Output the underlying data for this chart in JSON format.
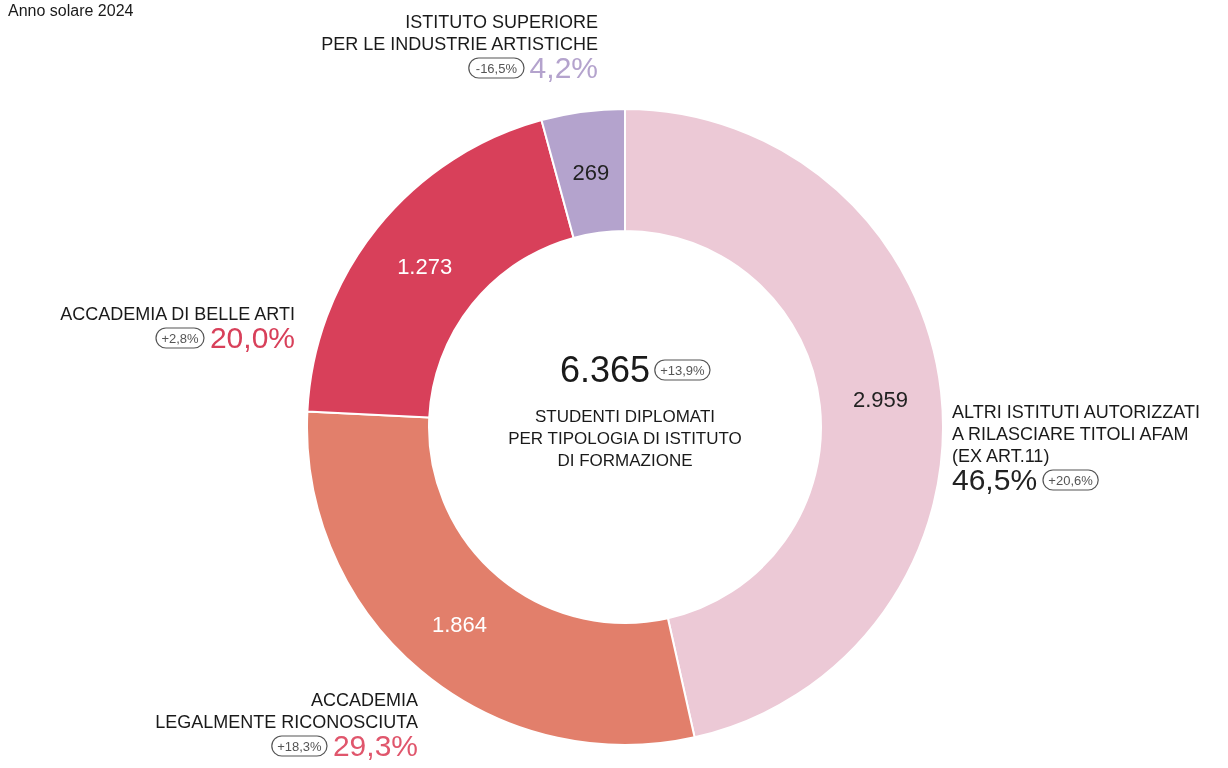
{
  "chart_data": {
    "type": "donut",
    "title": "Anno solare 2024",
    "categories": [
      "ALTRI ISTITUTI AUTORIZZATI\nA RILASCIARE TITOLI AFAM\n(EX ART.11)",
      "ACCADEMIA\nLEGALMENTE RICONOSCIUTA",
      "ACCADEMIA DI BELLE ARTI",
      "ISTITUTO SUPERIORE\nPER LE INDUSTRIE ARTISTICHE"
    ],
    "values": [
      2959,
      1864,
      1273,
      269
    ],
    "colors": [
      "#ecc9d6",
      "#e27f6b",
      "#d8405a",
      "#b4a3cd"
    ],
    "value_labels": [
      "2.959",
      "1.864",
      "1.273",
      "269"
    ],
    "annotations": [
      "6.365",
      "+13,9%",
      "STUDENTI DIPLOMATI\nPER TIPOLOGIA DI ISTITUTO\nDI FORMAZIONE",
      "46,5%",
      "+20,6%",
      "29,3%",
      "+18,3%",
      "20,0%",
      "+2,8%",
      "4,2%",
      "-16,5%"
    ]
  }
}
